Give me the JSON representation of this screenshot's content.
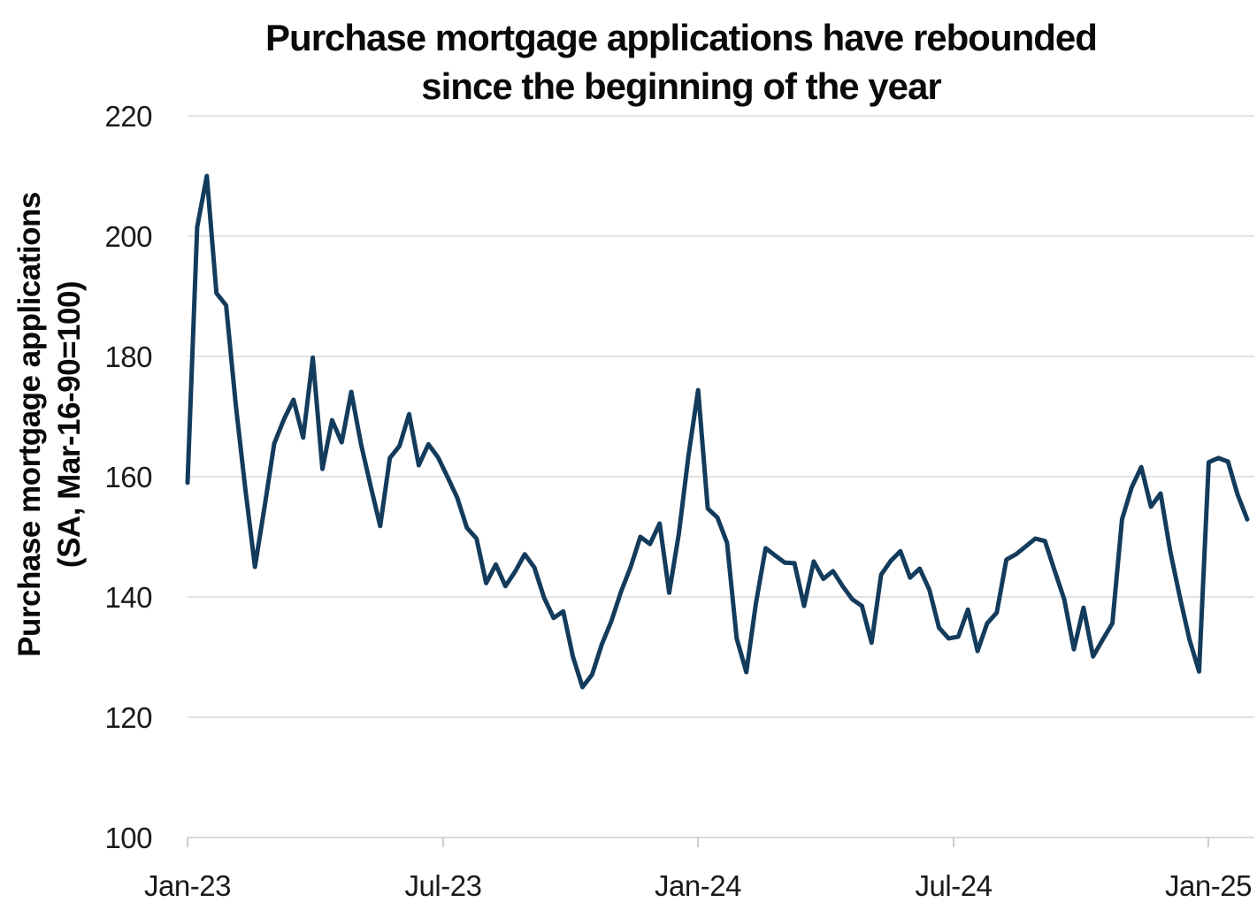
{
  "title": {
    "line1": "Purchase mortgage applications have rebounded",
    "line2": "since the beginning of the year"
  },
  "y_axis": {
    "label_line1": "Purchase mortgage applications",
    "label_line2": "(SA, Mar-16-90=100)"
  },
  "chart_data": {
    "type": "line",
    "title": "Purchase mortgage applications have rebounded since the beginning of the year",
    "ylabel": "Purchase mortgage applications (SA, Mar-16-90=100)",
    "xlabel": "",
    "x_unit": "week",
    "ylim": [
      100,
      220
    ],
    "y_ticks": [
      220,
      200,
      180,
      160,
      140,
      120,
      100
    ],
    "x_tick_labels": [
      "Jan-23",
      "Jul-23",
      "Jan-24",
      "Jul-24",
      "Jan-25"
    ],
    "grid": "horizontal",
    "legend": "none",
    "line_color": "#133b5c",
    "series": [
      {
        "name": "Purchase mortgage applications (SA, Mar-16-90=100)",
        "values": [
          159,
          201.5,
          210,
          190.5,
          188.5,
          172,
          158,
          145,
          155,
          165.5,
          169.5,
          172.8,
          166.5,
          179.8,
          161.3,
          169.4,
          165.7,
          174.1,
          165.5,
          158.5,
          151.8,
          163.1,
          165.1,
          170.4,
          161.9,
          165.4,
          163.2,
          159.9,
          156.5,
          151.5,
          149.7,
          142.3,
          145.4,
          141.8,
          144.2,
          147.1,
          144.9,
          139.9,
          136.5,
          137.6,
          130.1,
          125,
          127.1,
          132.1,
          136,
          140.9,
          145,
          150,
          148.8,
          152.2,
          140.7,
          150.5,
          163.5,
          174.4,
          154.7,
          153.2,
          149,
          133.1,
          127.5,
          139,
          148.1,
          146.9,
          145.7,
          145.6,
          138.5,
          145.9,
          143,
          144.3,
          141.8,
          139.6,
          138.5,
          132.4,
          143.7,
          146,
          147.6,
          143.2,
          144.7,
          141.2,
          134.9,
          133.1,
          133.4,
          137.9,
          131,
          135.6,
          137.4,
          146.2,
          147.1,
          148.4,
          149.7,
          149.3,
          144.4,
          139.6,
          131.3,
          138.2,
          130.1,
          132.9,
          135.6,
          152.9,
          158.2,
          161.6,
          155,
          157.2,
          147.6,
          140,
          132.9,
          127.6,
          162.4,
          163.1,
          162.5,
          157,
          152.9
        ]
      }
    ]
  },
  "colors": {
    "line": "#133b5c",
    "grid": "#e2e2e2",
    "axis": "#d9d9d9",
    "tick_mark": "#cfcfcf",
    "tick_text": "#1a1a1a",
    "title_text": "#0a0a0a",
    "background": "#ffffff"
  }
}
